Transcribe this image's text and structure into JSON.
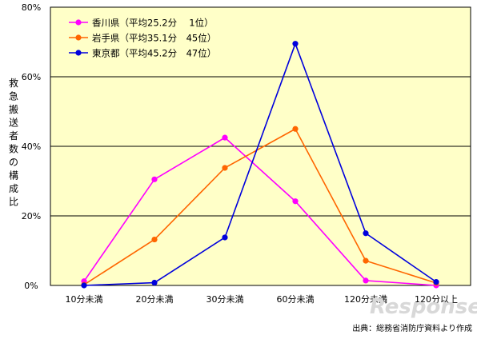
{
  "chart_data": {
    "type": "line",
    "categories": [
      "10分未満",
      "20分未満",
      "30分未満",
      "60分未満",
      "120分未満",
      "120分以上"
    ],
    "series": [
      {
        "name": "香川県（平均25.2分　 1位）",
        "color": "#ff00ff",
        "values": [
          1.2,
          30.5,
          42.5,
          24.2,
          1.4,
          0.0
        ]
      },
      {
        "name": "岩手県（平均35.1分　45位）",
        "color": "#ff6600",
        "values": [
          0.2,
          13.2,
          33.8,
          45.0,
          7.1,
          0.7
        ]
      },
      {
        "name": "東京都（平均45.2分　47位）",
        "color": "#0000dd",
        "values": [
          0.0,
          0.8,
          13.8,
          69.5,
          15.0,
          1.0
        ]
      }
    ],
    "y_ticks": [
      "0%",
      "20%",
      "40%",
      "60%",
      "80%"
    ],
    "ylim": [
      0,
      80
    ],
    "ylabel": "救急搬送者数の構成比",
    "grid": true,
    "legend_position": "top-left",
    "plot_background": "#ffffc8"
  },
  "source_note": "出典：総務省消防庁資料より作成",
  "watermark": "Response"
}
